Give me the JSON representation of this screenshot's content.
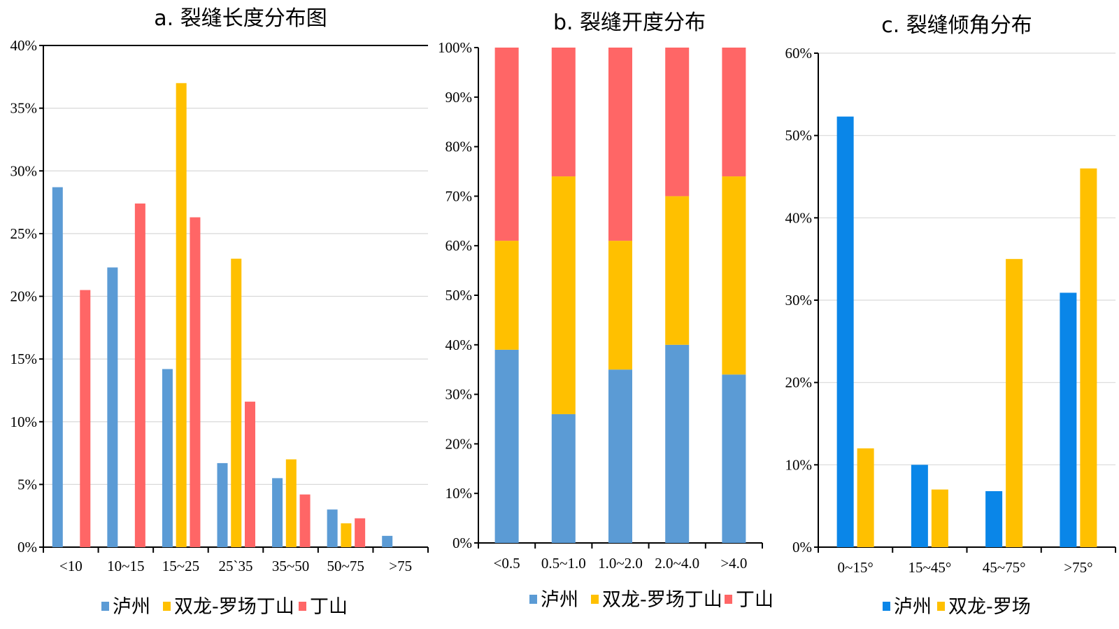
{
  "chart_data": [
    {
      "type": "bar",
      "title": "a. 裂缝长度分布图",
      "categories": [
        "<10",
        "10~15",
        "15~25",
        "25`35",
        "35~50",
        "50~75",
        ">75"
      ],
      "series": [
        {
          "name": "泸州",
          "color": "#5B9BD5",
          "values": [
            28.7,
            22.3,
            14.2,
            6.7,
            5.5,
            3.0,
            0.9
          ]
        },
        {
          "name": "双龙-罗场丁山",
          "color": "#FFC000",
          "values": [
            0,
            0,
            37.0,
            23.0,
            7.0,
            1.9,
            0
          ]
        },
        {
          "name": "丁山",
          "color": "#FF6666",
          "values": [
            20.5,
            27.4,
            26.3,
            11.6,
            4.2,
            2.3,
            0
          ]
        }
      ],
      "ylim": [
        0,
        40
      ],
      "yticks": [
        "0%",
        "5%",
        "10%",
        "15%",
        "20%",
        "25%",
        "30%",
        "35%",
        "40%"
      ],
      "xlabel": "",
      "ylabel": "",
      "grid": true,
      "legend": "bottom"
    },
    {
      "type": "bar",
      "stacked": true,
      "title": "b. 裂缝开度分布",
      "categories": [
        "<0.5",
        "0.5~1.0",
        "1.0~2.0",
        "2.0~4.0",
        ">4.0"
      ],
      "series": [
        {
          "name": "泸州",
          "color": "#5B9BD5",
          "values": [
            39,
            26,
            35,
            40,
            34
          ]
        },
        {
          "name": "双龙-罗场丁山",
          "color": "#FFC000",
          "values": [
            22,
            48,
            26,
            30,
            40
          ]
        },
        {
          "name": "丁山",
          "color": "#FF6666",
          "values": [
            39,
            26,
            39,
            30,
            26
          ]
        }
      ],
      "ylim": [
        0,
        100
      ],
      "yticks": [
        "0%",
        "10%",
        "20%",
        "30%",
        "40%",
        "50%",
        "60%",
        "70%",
        "80%",
        "90%",
        "100%"
      ],
      "xlabel": "",
      "ylabel": "",
      "grid": false,
      "legend": "bottom"
    },
    {
      "type": "bar",
      "title": "c. 裂缝倾角分布",
      "categories": [
        "0~15°",
        "15~45°",
        "45~75°",
        ">75°"
      ],
      "series": [
        {
          "name": "泸州",
          "color": "#0A86E8",
          "values": [
            52.3,
            10.0,
            6.8,
            30.9
          ]
        },
        {
          "name": "双龙-罗场",
          "color": "#FFC000",
          "values": [
            12.0,
            7.0,
            35.0,
            46.0
          ]
        }
      ],
      "ylim": [
        0,
        60
      ],
      "yticks": [
        "0%",
        "10%",
        "20%",
        "30%",
        "40%",
        "50%",
        "60%"
      ],
      "xlabel": "",
      "ylabel": "",
      "grid": true,
      "legend": "bottom"
    }
  ]
}
